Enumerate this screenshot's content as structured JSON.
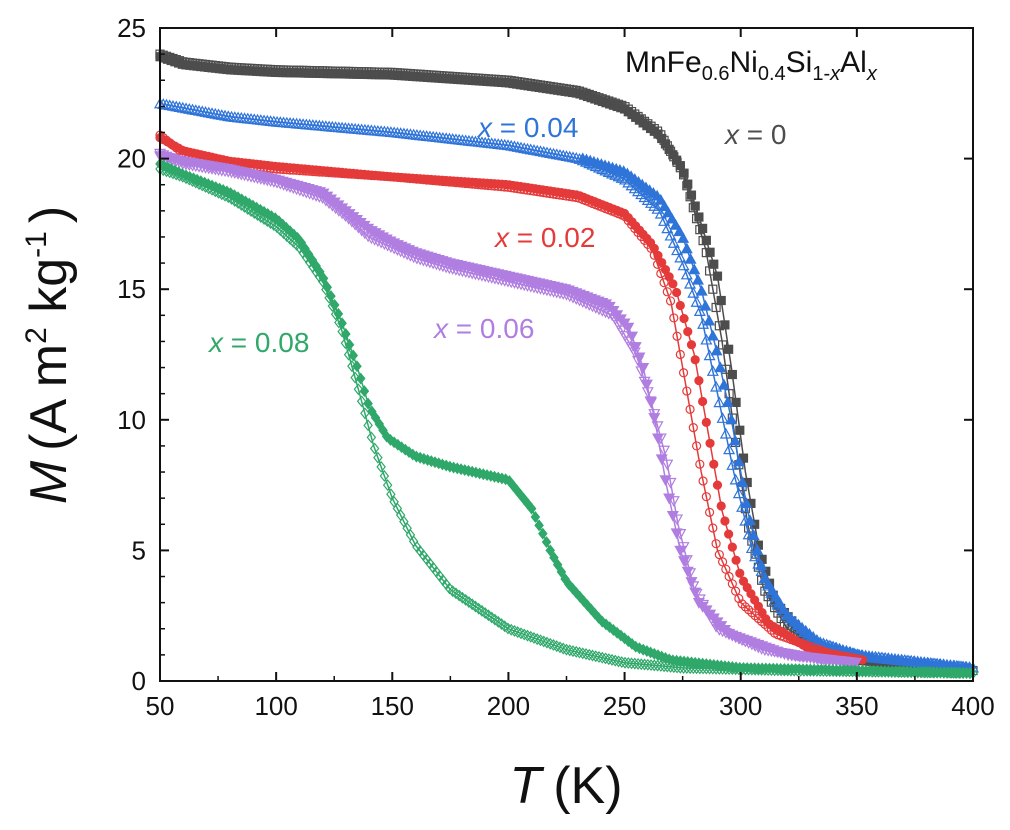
{
  "chart_data": {
    "type": "line",
    "title": "",
    "xlabel": {
      "var": "T",
      "unit": "(K)"
    },
    "ylabel": {
      "var": "M",
      "unit_a": "(A m",
      "unit_sup1": "2",
      "unit_b": " kg",
      "unit_sup2": "-1",
      "unit_c": ")"
    },
    "xlim": [
      50,
      400
    ],
    "ylim": [
      0,
      25
    ],
    "x_ticks": [
      50,
      100,
      150,
      200,
      250,
      300,
      350,
      400
    ],
    "y_ticks": [
      0,
      5,
      10,
      15,
      20,
      25
    ],
    "grid": false,
    "formula": {
      "p1": "MnFe",
      "s1": "0.6",
      "p2": "Ni",
      "s2": "0.4",
      "p3": "Si",
      "s3": "1-",
      "s3i": "x",
      "p4": "Al",
      "s4i": "x"
    },
    "series": [
      {
        "name": "x = 0",
        "label_var": "x",
        "label_rest": " = 0",
        "color": "#4d4d4d",
        "marker": "square",
        "cooling": [
          [
            50,
            24.0
          ],
          [
            60,
            23.7
          ],
          [
            80,
            23.5
          ],
          [
            100,
            23.4
          ],
          [
            150,
            23.3
          ],
          [
            200,
            23.0
          ],
          [
            230,
            22.6
          ],
          [
            250,
            22.0
          ],
          [
            265,
            21.0
          ],
          [
            275,
            19.5
          ],
          [
            285,
            16.5
          ],
          [
            292,
            13.0
          ],
          [
            298,
            9.0
          ],
          [
            303,
            6.0
          ],
          [
            310,
            3.5
          ],
          [
            320,
            2.0
          ],
          [
            340,
            1.0
          ],
          [
            360,
            0.7
          ],
          [
            400,
            0.4
          ]
        ],
        "heating": [
          [
            50,
            23.9
          ],
          [
            60,
            23.6
          ],
          [
            80,
            23.4
          ],
          [
            100,
            23.3
          ],
          [
            150,
            23.2
          ],
          [
            200,
            22.9
          ],
          [
            230,
            22.5
          ],
          [
            250,
            21.9
          ],
          [
            265,
            20.9
          ],
          [
            275,
            19.6
          ],
          [
            283,
            17.5
          ],
          [
            290,
            15.5
          ],
          [
            296,
            12.0
          ],
          [
            302,
            8.0
          ],
          [
            308,
            5.0
          ],
          [
            315,
            3.0
          ],
          [
            330,
            1.5
          ],
          [
            350,
            0.8
          ],
          [
            400,
            0.4
          ]
        ]
      },
      {
        "name": "x = 0.04",
        "label_var": "x",
        "label_rest": " = 0.04",
        "color": "#2f74d8",
        "marker": "triangle",
        "cooling": [
          [
            50,
            22.1
          ],
          [
            80,
            21.6
          ],
          [
            100,
            21.4
          ],
          [
            150,
            21.0
          ],
          [
            200,
            20.5
          ],
          [
            230,
            20.0
          ],
          [
            250,
            19.2
          ],
          [
            265,
            18.0
          ],
          [
            275,
            16.0
          ],
          [
            283,
            14.0
          ],
          [
            290,
            11.0
          ],
          [
            297,
            8.0
          ],
          [
            305,
            5.0
          ],
          [
            315,
            3.0
          ],
          [
            330,
            1.6
          ],
          [
            350,
            1.0
          ],
          [
            400,
            0.5
          ]
        ],
        "heating": [
          [
            232,
            20.0
          ],
          [
            250,
            19.5
          ],
          [
            265,
            18.5
          ],
          [
            275,
            17.0
          ],
          [
            283,
            15.0
          ],
          [
            290,
            12.5
          ],
          [
            296,
            10.0
          ],
          [
            303,
            6.5
          ],
          [
            310,
            4.0
          ],
          [
            320,
            2.5
          ],
          [
            335,
            1.4
          ],
          [
            355,
            0.9
          ],
          [
            400,
            0.5
          ]
        ]
      },
      {
        "name": "x = 0.02",
        "label_var": "x",
        "label_rest": " = 0.02",
        "color": "#e53a3a",
        "marker": "circle",
        "cooling": [
          [
            50,
            20.9
          ],
          [
            60,
            20.2
          ],
          [
            80,
            19.8
          ],
          [
            100,
            19.6
          ],
          [
            150,
            19.3
          ],
          [
            200,
            18.9
          ],
          [
            230,
            18.5
          ],
          [
            250,
            17.8
          ],
          [
            262,
            16.5
          ],
          [
            270,
            14.5
          ],
          [
            277,
            11.0
          ],
          [
            283,
            8.0
          ],
          [
            290,
            5.0
          ],
          [
            300,
            3.0
          ],
          [
            315,
            1.8
          ],
          [
            340,
            1.0
          ],
          [
            353,
            0.8
          ]
        ],
        "heating": [
          [
            50,
            20.8
          ],
          [
            60,
            20.3
          ],
          [
            80,
            19.9
          ],
          [
            100,
            19.7
          ],
          [
            150,
            19.3
          ],
          [
            200,
            19.0
          ],
          [
            230,
            18.6
          ],
          [
            250,
            17.9
          ],
          [
            262,
            16.7
          ],
          [
            272,
            15.0
          ],
          [
            280,
            12.5
          ],
          [
            286,
            9.5
          ],
          [
            292,
            6.5
          ],
          [
            300,
            4.0
          ],
          [
            312,
            2.2
          ],
          [
            330,
            1.2
          ],
          [
            353,
            0.8
          ]
        ]
      },
      {
        "name": "x = 0.06",
        "label_var": "x",
        "label_rest": " = 0.06",
        "color": "#b07ee0",
        "marker": "down-triangle",
        "cooling": [
          [
            50,
            20.2
          ],
          [
            60,
            19.8
          ],
          [
            80,
            19.5
          ],
          [
            100,
            19.1
          ],
          [
            120,
            18.5
          ],
          [
            130,
            17.8
          ],
          [
            140,
            17.0
          ],
          [
            150,
            16.6
          ],
          [
            160,
            16.2
          ],
          [
            175,
            15.8
          ],
          [
            200,
            15.3
          ],
          [
            225,
            14.8
          ],
          [
            245,
            14.0
          ],
          [
            255,
            12.5
          ],
          [
            262,
            10.5
          ],
          [
            268,
            8.5
          ],
          [
            273,
            6.0
          ],
          [
            280,
            3.5
          ],
          [
            290,
            2.0
          ],
          [
            310,
            1.2
          ],
          [
            330,
            0.9
          ],
          [
            350,
            0.7
          ]
        ],
        "heating": [
          [
            50,
            20.1
          ],
          [
            60,
            19.9
          ],
          [
            80,
            19.6
          ],
          [
            100,
            19.2
          ],
          [
            120,
            18.7
          ],
          [
            130,
            18.0
          ],
          [
            140,
            17.3
          ],
          [
            150,
            16.8
          ],
          [
            160,
            16.4
          ],
          [
            175,
            16.0
          ],
          [
            200,
            15.5
          ],
          [
            225,
            15.0
          ],
          [
            243,
            14.4
          ],
          [
            252,
            13.5
          ],
          [
            258,
            12.0
          ],
          [
            263,
            10.0
          ],
          [
            268,
            7.5
          ],
          [
            274,
            5.0
          ],
          [
            282,
            3.0
          ],
          [
            295,
            1.8
          ],
          [
            320,
            1.0
          ],
          [
            350,
            0.7
          ]
        ]
      },
      {
        "name": "x = 0.08",
        "label_var": "x",
        "label_rest": " = 0.08",
        "color": "#2fa86a",
        "marker": "diamond",
        "cooling": [
          [
            50,
            19.6
          ],
          [
            60,
            19.3
          ],
          [
            80,
            18.5
          ],
          [
            100,
            17.4
          ],
          [
            110,
            16.6
          ],
          [
            120,
            15.3
          ],
          [
            128,
            13.5
          ],
          [
            135,
            11.3
          ],
          [
            142,
            9.0
          ],
          [
            150,
            7.0
          ],
          [
            160,
            5.2
          ],
          [
            175,
            3.5
          ],
          [
            200,
            2.0
          ],
          [
            225,
            1.2
          ],
          [
            250,
            0.7
          ],
          [
            275,
            0.5
          ],
          [
            320,
            0.4
          ],
          [
            400,
            0.3
          ]
        ],
        "heating": [
          [
            50,
            19.8
          ],
          [
            60,
            19.4
          ],
          [
            80,
            18.7
          ],
          [
            100,
            17.7
          ],
          [
            110,
            16.9
          ],
          [
            120,
            15.5
          ],
          [
            128,
            13.8
          ],
          [
            135,
            12.0
          ],
          [
            140,
            10.5
          ],
          [
            148,
            9.3
          ],
          [
            160,
            8.6
          ],
          [
            175,
            8.2
          ],
          [
            190,
            7.9
          ],
          [
            200,
            7.7
          ],
          [
            210,
            6.6
          ],
          [
            218,
            5.0
          ],
          [
            225,
            3.8
          ],
          [
            240,
            2.3
          ],
          [
            255,
            1.3
          ],
          [
            270,
            0.8
          ],
          [
            300,
            0.5
          ],
          [
            400,
            0.3
          ]
        ]
      }
    ],
    "annotations": [
      {
        "series": "x = 0",
        "text_var": "x",
        "text_rest": " = 0"
      },
      {
        "series": "x = 0.04",
        "text_var": "x",
        "text_rest": " = 0.04"
      },
      {
        "series": "x = 0.02",
        "text_var": "x",
        "text_rest": " = 0.02"
      },
      {
        "series": "x = 0.06",
        "text_var": "x",
        "text_rest": " = 0.06"
      },
      {
        "series": "x = 0.08",
        "text_var": "x",
        "text_rest": " = 0.08"
      }
    ]
  }
}
